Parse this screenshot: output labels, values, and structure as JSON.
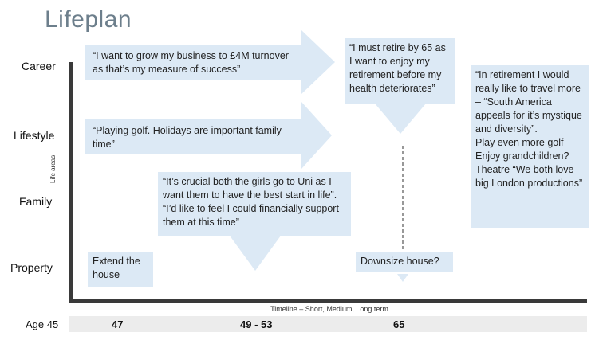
{
  "title": "Lifeplan",
  "rows": {
    "career": "Career",
    "lifestyle": "Lifestyle",
    "family": "Family",
    "property": "Property"
  },
  "axis": {
    "y_title": "Life areas",
    "x_title": "Timeline – Short, Medium, Long term"
  },
  "timeline": {
    "start_label": "Age 45",
    "ages": [
      "47",
      "49 - 53",
      "65"
    ]
  },
  "boxes": {
    "career_goal": "“I want to grow my business to £4M turnover as that’s my measure of success”",
    "retire_goal": "“I must retire by 65 as I want to enjoy my retirement before my health deteriorates”",
    "lifestyle_goal": "“Playing golf. Holidays are important family time”",
    "family_goal": "“It’s crucial both the girls go to Uni as I want them to have the best start in life”. “I’d like to feel I could financially support them at this time”",
    "retirement_travel": "“In retirement I would really like to travel more – “South America appeals for it’s mystique and diversity”.",
    "retirement_golf": "Play even more golf",
    "retirement_grandchildren": "Enjoy grandchildren?",
    "retirement_theatre": "Theatre “We both love big London productions”",
    "extend_house": "Extend the house",
    "downsize_house": "Downsize house?"
  },
  "colors": {
    "box_fill": "#dce9f5",
    "arrow_fill": "#dce9f5",
    "axis": "#3a3a3a",
    "title": "#6d7f8c"
  }
}
